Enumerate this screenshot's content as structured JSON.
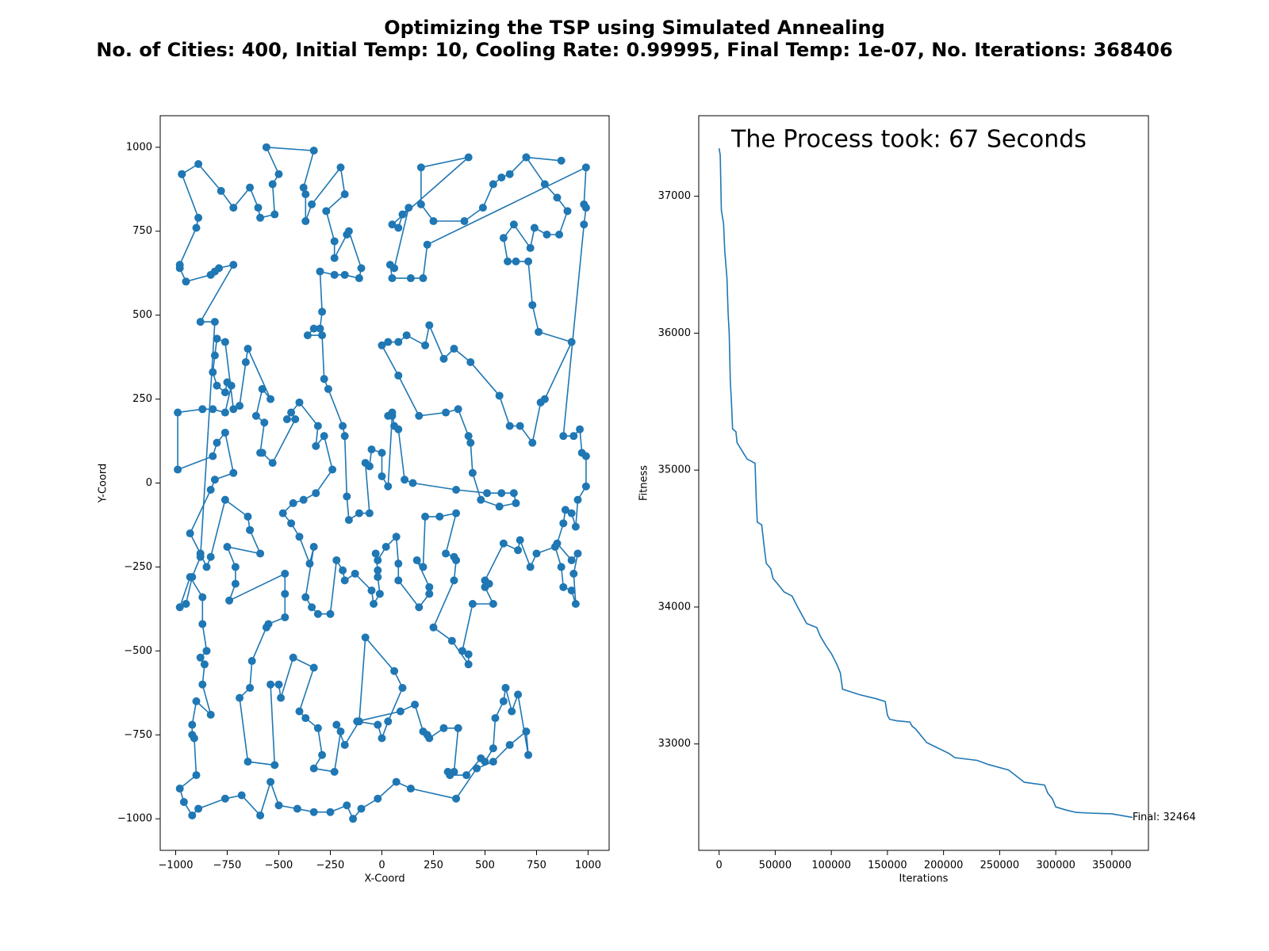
{
  "title": "Optimizing the TSP using Simulated Annealing",
  "subtitle": "No. of Cities: 400, Initial Temp: 10, Cooling Rate: 0.99995, Final Temp: 1e-07, No. Iterations: 368406",
  "chart_data": [
    {
      "type": "line",
      "marker": true,
      "color": "#1f77b4",
      "xlabel": "X-Coord",
      "ylabel": "Y-Coord",
      "xlim": [
        -1075,
        1102
      ],
      "ylim": [
        -1094,
        1094
      ],
      "xticks": [
        {
          "value": -1000,
          "label": "−1000"
        },
        {
          "value": -750,
          "label": "−750"
        },
        {
          "value": -500,
          "label": "−500"
        },
        {
          "value": -250,
          "label": "−250"
        },
        0,
        250,
        500,
        750,
        1000
      ],
      "yticks": [
        {
          "value": -1000,
          "label": "−1000"
        },
        {
          "value": -750,
          "label": "−750"
        },
        {
          "value": -500,
          "label": "−500"
        },
        {
          "value": -250,
          "label": "−250"
        },
        0,
        250,
        500,
        750,
        1000
      ],
      "x": [
        -970,
        -890,
        -780,
        -720,
        -640,
        -600,
        -590,
        -520,
        -530,
        -500,
        -560,
        -330,
        -380,
        -370,
        -370,
        -340,
        -200,
        -180,
        -270,
        -230,
        -230,
        -170,
        -160,
        -100,
        -110,
        -180,
        -230,
        -300,
        -290,
        -300,
        -330,
        -360,
        -290,
        -280,
        -260,
        -190,
        -180,
        -170,
        -160,
        -110,
        -60,
        -80,
        -60,
        -50,
        0,
        0,
        30,
        50,
        30,
        50,
        60,
        80,
        110,
        150,
        360,
        510,
        580,
        640,
        650,
        570,
        480,
        440,
        430,
        420,
        370,
        310,
        180,
        80,
        0,
        30,
        80,
        120,
        210,
        230,
        300,
        350,
        430,
        570,
        620,
        670,
        730,
        770,
        790,
        920,
        760,
        730,
        710,
        650,
        610,
        590,
        640,
        720,
        740,
        800,
        860,
        900,
        850,
        790,
        700,
        870,
        700,
        620,
        580,
        540,
        490,
        400,
        250,
        190,
        190,
        420,
        50,
        80,
        100,
        130,
        60,
        40,
        50,
        140,
        200,
        220,
        990,
        980,
        990,
        980,
        880,
        930,
        960,
        970,
        990,
        990,
        950,
        940,
        920,
        890,
        880,
        850,
        920,
        950,
        930,
        940,
        920,
        880,
        870,
        840,
        750,
        720,
        670,
        660,
        590,
        500,
        520,
        500,
        540,
        440,
        390,
        420,
        420,
        340,
        250,
        350,
        360,
        350,
        310,
        360,
        280,
        210,
        200,
        170,
        230,
        230,
        180,
        80,
        80,
        70,
        20,
        -20,
        -30,
        -20,
        -20,
        -10,
        -40,
        -50,
        -130,
        -180,
        -190,
        -220,
        -250,
        -310,
        -340,
        -370,
        -330,
        -350,
        -400,
        -440,
        -480,
        -430,
        -380,
        -320,
        -240,
        -280,
        -320,
        -310,
        -400,
        -440,
        -460,
        -420,
        -530,
        -580,
        -590,
        -570,
        -610,
        -580,
        -540,
        -650,
        -660,
        -690,
        -720,
        -760,
        -800,
        -810,
        -820,
        -800,
        -760,
        -750,
        -730,
        -760,
        -820,
        -870,
        -990,
        -990,
        -820,
        -800,
        -760,
        -720,
        -810,
        -830,
        -930,
        -880,
        -850,
        -830,
        -760,
        -650,
        -640,
        -590,
        -750,
        -710,
        -710,
        -740,
        -470,
        -470,
        -470,
        -550,
        -560,
        -630,
        -640,
        -690,
        -650,
        -520,
        -540,
        -500,
        -490,
        -430,
        -330,
        -400,
        -370,
        -310,
        -290,
        -330,
        -230,
        -200,
        -220,
        -180,
        -110,
        -80,
        60,
        100,
        30,
        0,
        -20,
        -120,
        90,
        160,
        200,
        220,
        230,
        300,
        370,
        350,
        320,
        330,
        410,
        480,
        500,
        540,
        550,
        590,
        600,
        630,
        660,
        710,
        700,
        620,
        540,
        460,
        360,
        140,
        70,
        -20,
        -100,
        -140,
        -170,
        -250,
        -330,
        -410,
        -500,
        -540,
        -590,
        -680,
        -760,
        -890,
        -920,
        -960,
        -980,
        -900,
        -910,
        -920,
        -920,
        -900,
        -830,
        -870,
        -860,
        -880,
        -850,
        -870,
        -870,
        -930,
        -980,
        -950,
        -920,
        -880,
        -810,
        -880,
        -720,
        -790,
        -810,
        -830,
        -950,
        -980,
        -980,
        -900,
        -890,
        -970
      ],
      "values": [
        920,
        950,
        870,
        820,
        880,
        820,
        790,
        800,
        890,
        920,
        1000,
        990,
        880,
        860,
        780,
        830,
        940,
        860,
        810,
        720,
        670,
        740,
        750,
        640,
        610,
        620,
        620,
        630,
        510,
        460,
        460,
        440,
        440,
        310,
        280,
        170,
        140,
        -40,
        -110,
        -90,
        -90,
        60,
        50,
        100,
        90,
        20,
        -10,
        200,
        200,
        210,
        170,
        160,
        10,
        0,
        -20,
        -30,
        -30,
        -30,
        -60,
        -70,
        -50,
        30,
        120,
        140,
        220,
        210,
        200,
        320,
        410,
        420,
        420,
        440,
        410,
        470,
        370,
        400,
        360,
        260,
        170,
        170,
        120,
        240,
        250,
        420,
        450,
        530,
        660,
        660,
        660,
        730,
        770,
        700,
        760,
        740,
        740,
        810,
        850,
        890,
        970,
        960,
        970,
        920,
        910,
        890,
        820,
        780,
        780,
        830,
        940,
        970,
        770,
        760,
        800,
        820,
        640,
        650,
        610,
        610,
        610,
        710,
        940,
        830,
        820,
        770,
        140,
        140,
        160,
        90,
        80,
        -10,
        -50,
        -130,
        -90,
        -80,
        -120,
        -180,
        -230,
        -210,
        -270,
        -360,
        -320,
        -310,
        -250,
        -190,
        -210,
        -250,
        -170,
        -200,
        -180,
        -290,
        -300,
        -310,
        -360,
        -360,
        -500,
        -510,
        -540,
        -470,
        -430,
        -290,
        -230,
        -220,
        -210,
        -90,
        -100,
        -100,
        -250,
        -230,
        -310,
        -330,
        -370,
        -290,
        -240,
        -160,
        -190,
        -230,
        -210,
        -260,
        -280,
        -330,
        -360,
        -320,
        -270,
        -290,
        -260,
        -230,
        -390,
        -390,
        -370,
        -340,
        -190,
        -240,
        -160,
        -120,
        -90,
        -60,
        -50,
        -30,
        40,
        140,
        110,
        170,
        240,
        210,
        190,
        190,
        60,
        90,
        90,
        180,
        200,
        280,
        250,
        400,
        360,
        230,
        220,
        420,
        430,
        380,
        330,
        290,
        270,
        300,
        290,
        210,
        220,
        220,
        210,
        40,
        80,
        120,
        150,
        30,
        10,
        -20,
        -150,
        -210,
        -250,
        -220,
        -50,
        -100,
        -140,
        -210,
        -190,
        -250,
        -300,
        -350,
        -270,
        -330,
        -400,
        -420,
        -430,
        -530,
        -610,
        -640,
        -830,
        -840,
        -600,
        -600,
        -640,
        -520,
        -550,
        -680,
        -700,
        -730,
        -810,
        -850,
        -860,
        -740,
        -720,
        -780,
        -710,
        -460,
        -560,
        -610,
        -710,
        -760,
        -720,
        -710,
        -680,
        -660,
        -740,
        -750,
        -760,
        -730,
        -730,
        -860,
        -860,
        -870,
        -870,
        -820,
        -830,
        -790,
        -700,
        -650,
        -610,
        -680,
        -630,
        -810,
        -740,
        -780,
        -830,
        -850,
        -940,
        -910,
        -890,
        -940,
        -970,
        -1000,
        -960,
        -980,
        -980,
        -970,
        -960,
        -890,
        -990,
        -930,
        -940,
        -970,
        -990,
        -950,
        -910,
        -870,
        -760,
        -750,
        -720,
        -650,
        -690,
        -600,
        -540,
        -520,
        -500,
        -420,
        -340,
        -280,
        -370,
        -360,
        -280,
        -220,
        480,
        480,
        650,
        640,
        630,
        620,
        600,
        640,
        650,
        760,
        790,
        920
      ]
    },
    {
      "type": "line",
      "marker": false,
      "color": "#1f77b4",
      "xlabel": "Iterations",
      "ylabel": "Fitness",
      "annotation": "The Process took: 67 Seconds",
      "final_label": "Final: 32464",
      "xlim": [
        -18150,
        382600
      ],
      "ylim": [
        32223,
        37588
      ],
      "xticks": [
        0,
        50000,
        100000,
        150000,
        200000,
        250000,
        300000,
        350000
      ],
      "yticks": [
        33000,
        34000,
        35000,
        36000,
        37000
      ],
      "x": [
        0,
        1000,
        2000,
        4000,
        5000,
        7000,
        8000,
        9000,
        10000,
        11000,
        12000,
        15000,
        16000,
        22000,
        25000,
        32000,
        33000,
        34000,
        38000,
        40000,
        42000,
        46000,
        48000,
        52000,
        58000,
        65000,
        70000,
        78000,
        87000,
        90000,
        95000,
        100000,
        105000,
        108000,
        110000,
        125000,
        140000,
        148000,
        150000,
        152000,
        158000,
        170000,
        172000,
        175000,
        185000,
        190000,
        205000,
        210000,
        230000,
        240000,
        258000,
        272000,
        290000,
        293000,
        297000,
        300000,
        308000,
        318000,
        330000,
        350000,
        368406
      ],
      "values": [
        37350,
        37300,
        36900,
        36800,
        36600,
        36400,
        36150,
        36000,
        35650,
        35500,
        35300,
        35280,
        35200,
        35120,
        35080,
        35050,
        34800,
        34620,
        34600,
        34450,
        34320,
        34280,
        34210,
        34170,
        34110,
        34080,
        34000,
        33880,
        33850,
        33790,
        33720,
        33660,
        33580,
        33520,
        33400,
        33360,
        33330,
        33310,
        33210,
        33180,
        33170,
        33160,
        33130,
        33110,
        33010,
        32990,
        32930,
        32900,
        32880,
        32850,
        32810,
        32720,
        32700,
        32640,
        32600,
        32540,
        32520,
        32500,
        32495,
        32490,
        32464
      ]
    }
  ]
}
